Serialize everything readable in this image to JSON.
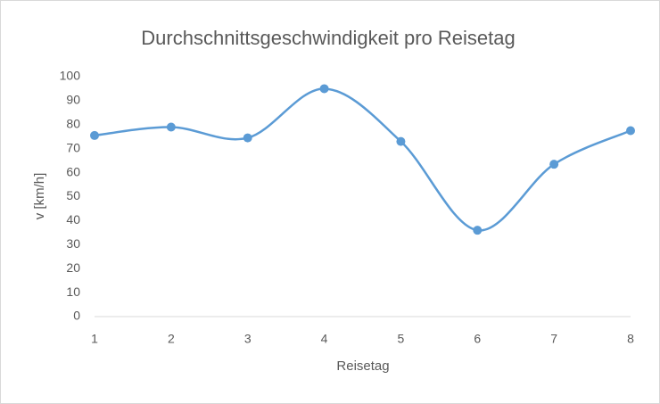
{
  "chart_data": {
    "type": "line",
    "title": "Durchschnittsgeschwindigkeit pro Reisetag",
    "x_label": "Reisetag",
    "y_label": "v [km/h]",
    "x": [
      1,
      2,
      3,
      4,
      5,
      6,
      7,
      8
    ],
    "series": [
      {
        "name": "v",
        "color": "#5b9bd5",
        "values": [
          75.5,
          79,
          74.5,
          95,
          73,
          36,
          63.5,
          77.5
        ]
      }
    ],
    "xlim": [
      1,
      8
    ],
    "xticks": [
      1,
      2,
      3,
      4,
      5,
      6,
      7,
      8
    ],
    "ylim": [
      0,
      100
    ],
    "yticks": [
      0,
      10,
      20,
      30,
      40,
      50,
      60,
      70,
      80,
      90,
      100
    ],
    "grid": false,
    "smooth": true,
    "markers": true
  }
}
